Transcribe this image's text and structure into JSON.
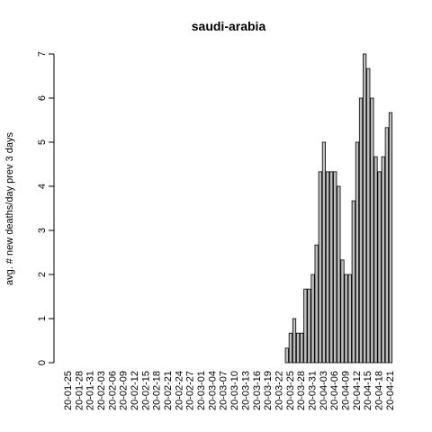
{
  "chart_data": {
    "type": "bar",
    "title": "saudi-arabia",
    "y_label": "avg. # new deaths/day prev  3  days",
    "categories": [
      "20-01-25",
      null,
      null,
      "20-01-28",
      null,
      null,
      "20-01-31",
      null,
      null,
      "20-02-03",
      null,
      null,
      "20-02-06",
      null,
      null,
      "20-02-09",
      null,
      null,
      "20-02-12",
      null,
      null,
      "20-02-15",
      null,
      null,
      "20-02-18",
      null,
      null,
      "20-02-21",
      null,
      null,
      "20-02-24",
      null,
      null,
      "20-02-27",
      null,
      null,
      "20-03-01",
      null,
      null,
      "20-03-04",
      null,
      null,
      "20-03-07",
      null,
      null,
      "20-03-10",
      null,
      null,
      "20-03-13",
      null,
      null,
      "20-03-16",
      null,
      null,
      "20-03-19",
      null,
      null,
      "20-03-22",
      null,
      null,
      "20-03-25",
      null,
      null,
      "20-03-28",
      null,
      null,
      "20-03-31",
      null,
      null,
      "20-04-03",
      null,
      null,
      "20-04-06",
      null,
      null,
      "20-04-09",
      null,
      null,
      "20-04-12",
      null,
      null,
      "20-04-15",
      null,
      null,
      "20-04-18",
      null,
      null,
      "20-04-21"
    ],
    "values": [
      0,
      0,
      0,
      0,
      0,
      0,
      0,
      0,
      0,
      0,
      0,
      0,
      0,
      0,
      0,
      0,
      0,
      0,
      0,
      0,
      0,
      0,
      0,
      0,
      0,
      0,
      0,
      0,
      0,
      0,
      0,
      0,
      0,
      0,
      0,
      0,
      0,
      0,
      0,
      0,
      0,
      0,
      0,
      0,
      0,
      0,
      0,
      0,
      0,
      0,
      0,
      0,
      0,
      0,
      0,
      0,
      0,
      0,
      0,
      0.33,
      0.67,
      1,
      0.67,
      0.67,
      1.67,
      1.67,
      2,
      2.67,
      4.33,
      5,
      4.33,
      4.33,
      4.33,
      4,
      2.33,
      2,
      2,
      3.67,
      5,
      6,
      7,
      6.67,
      6,
      4.67,
      4.33,
      4.67,
      5.33,
      5.67
    ],
    "color": "#bebebe",
    "ylim": [
      0,
      7
    ],
    "yticks": [
      0,
      1,
      2,
      3,
      4,
      5,
      6,
      7
    ]
  }
}
